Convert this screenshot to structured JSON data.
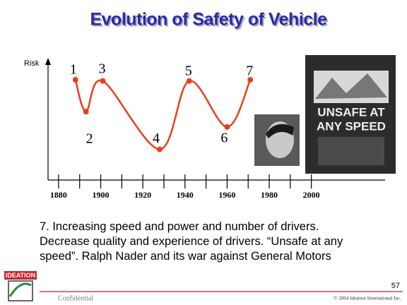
{
  "chart_data": {
    "type": "line",
    "title": "Evolution of Safety of Vehicle",
    "y_label": "Risk",
    "x": [
      1888,
      1893,
      1901,
      1928,
      1942,
      1960,
      1971
    ],
    "series": [
      {
        "color": "#e8401c",
        "values": [
          8.5,
          5.8,
          8.4,
          2.6,
          8.4,
          4.5,
          8.5
        ],
        "labels": [
          "1",
          "2",
          "3",
          "4",
          "5",
          "6",
          "7"
        ]
      }
    ],
    "xlim": [
      1875,
      2035
    ],
    "xticks": [
      1880,
      1900,
      1920,
      1940,
      1960,
      1980,
      2000
    ],
    "xminorticks": [
      1890,
      1910,
      1930,
      1950,
      1970,
      1990
    ],
    "ylim": [
      0,
      10
    ]
  },
  "book_cover": {
    "title_lines": [
      "UNSAFE AT",
      "ANY SPEED"
    ]
  },
  "caption": "7. Increasing speed and power and number of drivers. Decrease quality and experience of drivers. “Unsafe at any speed”.  Ralph Nader and its war against General Motors",
  "footer": {
    "logo": "IDEATION",
    "confidential": "Confidential",
    "copyright": "© 2004 Ideation International Inc.",
    "page": "57"
  }
}
